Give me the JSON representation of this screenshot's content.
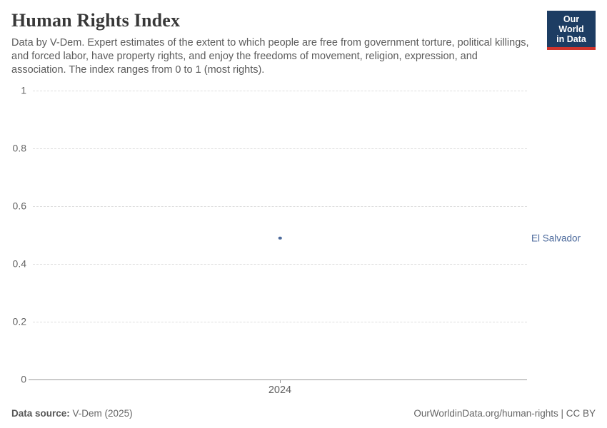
{
  "header": {
    "title": "Human Rights Index",
    "subtitle": "Data by V-Dem. Expert estimates of the extent to which people are free from government torture, political killings, and forced labor, have property rights, and enjoy the freedoms of movement, religion, expression, and association. The index ranges from 0 to 1 (most rights).",
    "logo": {
      "line1": "Our World",
      "line2": "in Data",
      "bg_color": "#1d3d63",
      "accent_color": "#d0342c"
    }
  },
  "chart_data": {
    "type": "scatter",
    "title": "Human Rights Index",
    "x": [
      2024
    ],
    "xticks": [
      "2024"
    ],
    "series": [
      {
        "name": "El Salvador",
        "values": [
          0.49
        ],
        "color": "#4c6a9c"
      }
    ],
    "yticks": [
      0,
      0.2,
      0.4,
      0.6,
      0.8,
      1
    ],
    "ylim": [
      0,
      1
    ],
    "grid": "horizontal-dashed",
    "legend_position": "right-entity-label",
    "entity_label_color": "#4c6a9c"
  },
  "footer": {
    "source_label": "Data source:",
    "source_value": "V-Dem (2025)",
    "credit": "OurWorldinData.org/human-rights | CC BY"
  }
}
